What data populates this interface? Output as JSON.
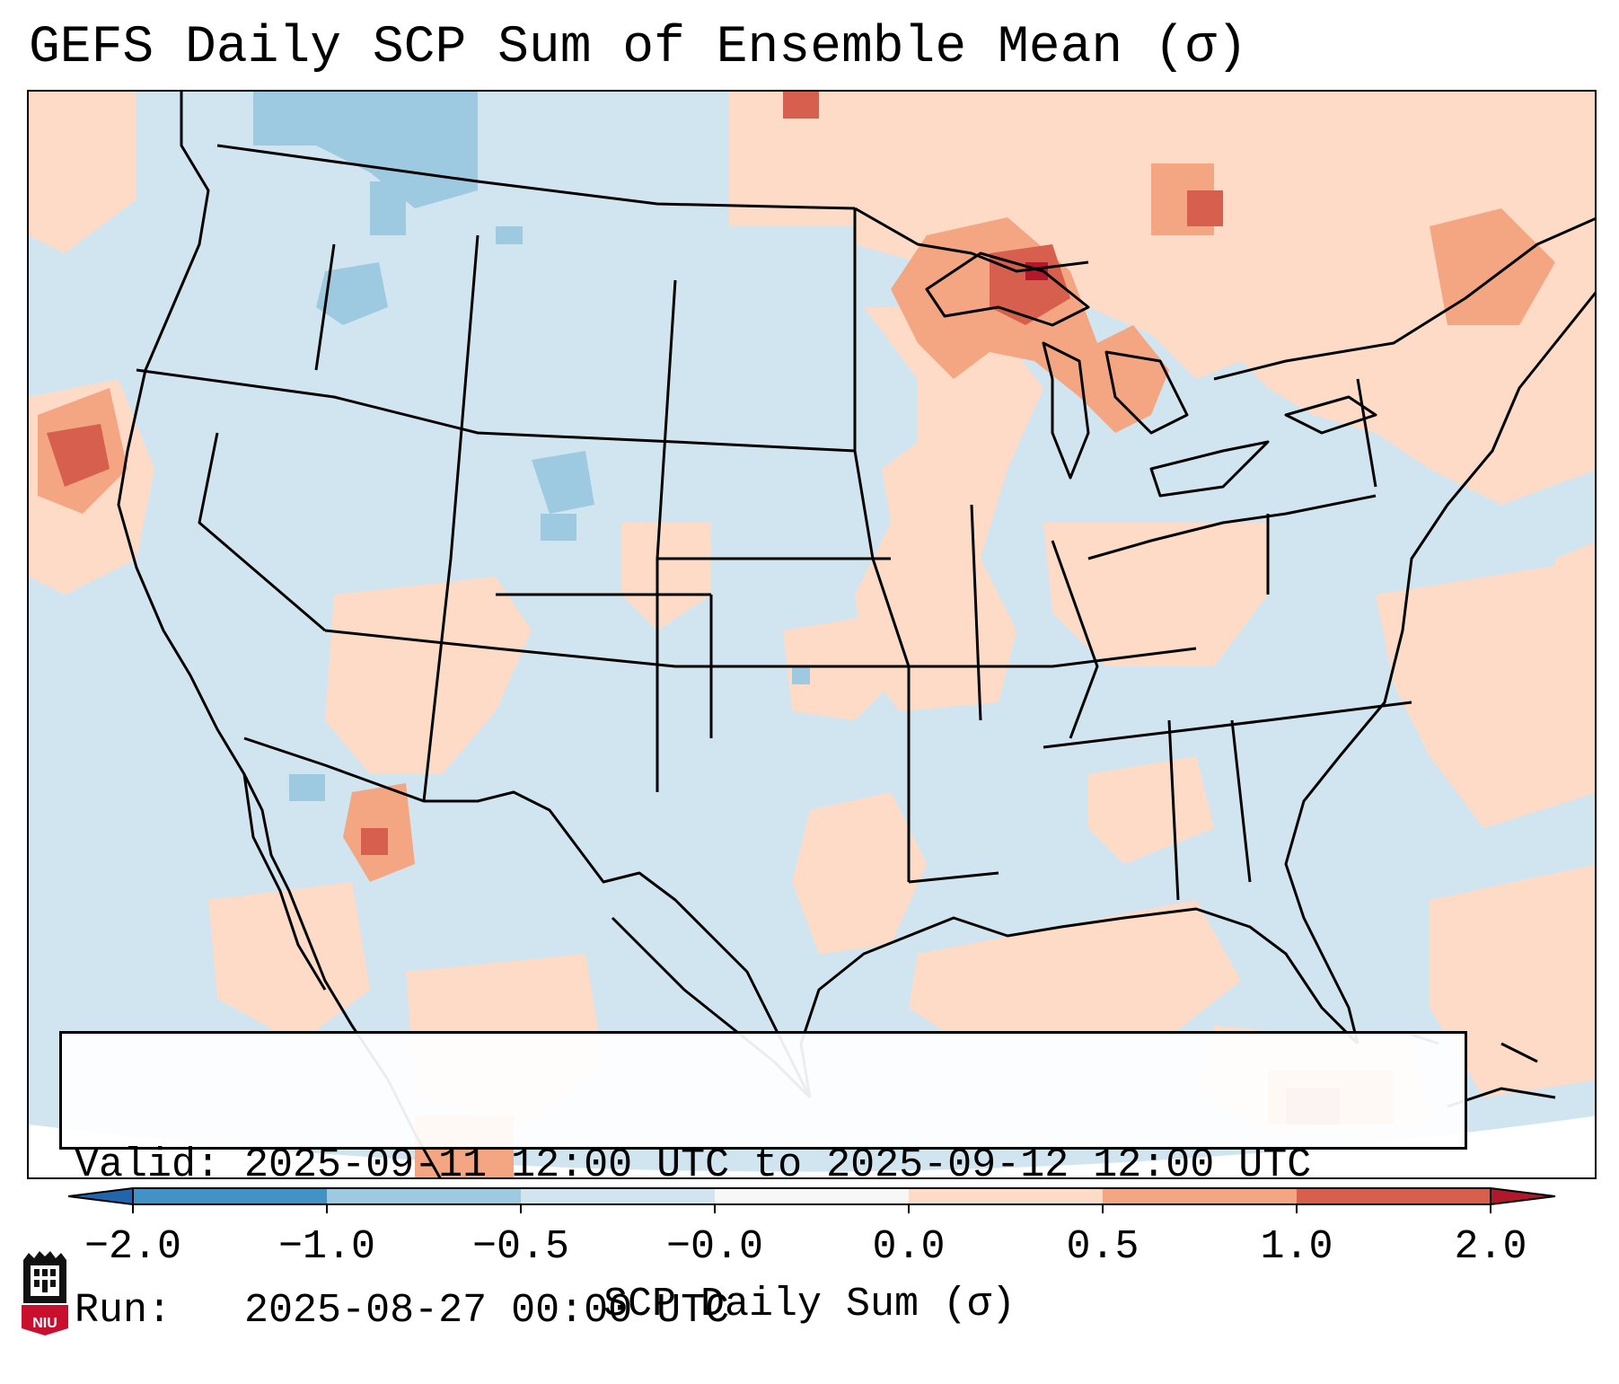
{
  "title": "GEFS Daily SCP Sum of Ensemble Mean (σ)",
  "info": {
    "valid_label": "Valid:",
    "valid_value": "2025-09-11 12:00 UTC to 2025-09-12 12:00 UTC",
    "run_label": "Run:",
    "run_value": "2025-08-27 00:00 UTC"
  },
  "colorbar": {
    "label": "SCP Daily Sum (σ)",
    "ticks": [
      "−2.0",
      "−1.0",
      "−0.5",
      "−0.0",
      "0.0",
      "0.5",
      "1.0",
      "2.0"
    ],
    "bins": [
      {
        "from": -2.0,
        "to": -1.0,
        "color": "#4292c6"
      },
      {
        "from": -1.0,
        "to": -0.5,
        "color": "#9ecae1"
      },
      {
        "from": -0.5,
        "to": -0.0,
        "color": "#d1e5f0"
      },
      {
        "from": -0.0,
        "to": 0.0,
        "color": "#f7f7f7"
      },
      {
        "from": 0.0,
        "to": 0.5,
        "color": "#fddbc7"
      },
      {
        "from": 0.5,
        "to": 1.0,
        "color": "#f4a582"
      },
      {
        "from": 1.0,
        "to": 2.0,
        "color": "#d6604d"
      }
    ],
    "extend_low_color": "#2166ac",
    "extend_high_color": "#b2182b"
  },
  "logo": {
    "text": "NIU",
    "color": "#c8102e"
  },
  "colors": {
    "background_ocean": "#d1e5f0",
    "border": "#000000"
  }
}
